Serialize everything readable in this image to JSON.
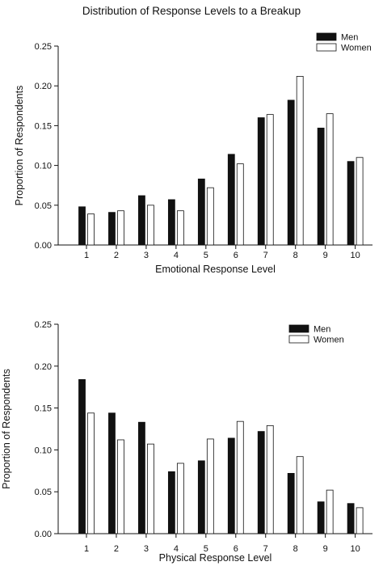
{
  "chart_data": [
    {
      "type": "bar",
      "title": "Distribution of Response Levels to a Breakup",
      "xlabel": "Emotional Response Level",
      "ylabel": "Proportion of Respondents",
      "categories": [
        "1",
        "2",
        "3",
        "4",
        "5",
        "6",
        "7",
        "8",
        "9",
        "10"
      ],
      "ylim": [
        0,
        0.25
      ],
      "yticks": [
        "0.00",
        "0.05",
        "0.10",
        "0.15",
        "0.20",
        "0.25"
      ],
      "legend_position": "top-right",
      "grid": false,
      "series": [
        {
          "name": "Men",
          "color": "#111111",
          "values": [
            0.048,
            0.041,
            0.062,
            0.057,
            0.083,
            0.114,
            0.16,
            0.182,
            0.147,
            0.105
          ]
        },
        {
          "name": "Women",
          "color": "#ffffff",
          "values": [
            0.039,
            0.043,
            0.05,
            0.043,
            0.072,
            0.102,
            0.164,
            0.212,
            0.165,
            0.11
          ]
        }
      ]
    },
    {
      "type": "bar",
      "title": "",
      "xlabel": "Physical Response Level",
      "ylabel": "Proportion of Respondents",
      "categories": [
        "1",
        "2",
        "3",
        "4",
        "5",
        "6",
        "7",
        "8",
        "9",
        "10"
      ],
      "ylim": [
        0,
        0.25
      ],
      "yticks": [
        "0.00",
        "0.05",
        "0.10",
        "0.15",
        "0.20",
        "0.25"
      ],
      "legend_position": "top-right",
      "grid": false,
      "series": [
        {
          "name": "Men",
          "color": "#111111",
          "values": [
            0.184,
            0.144,
            0.133,
            0.074,
            0.087,
            0.114,
            0.122,
            0.072,
            0.038,
            0.036
          ]
        },
        {
          "name": "Women",
          "color": "#ffffff",
          "values": [
            0.144,
            0.112,
            0.107,
            0.084,
            0.113,
            0.134,
            0.129,
            0.092,
            0.052,
            0.031
          ]
        }
      ]
    }
  ]
}
